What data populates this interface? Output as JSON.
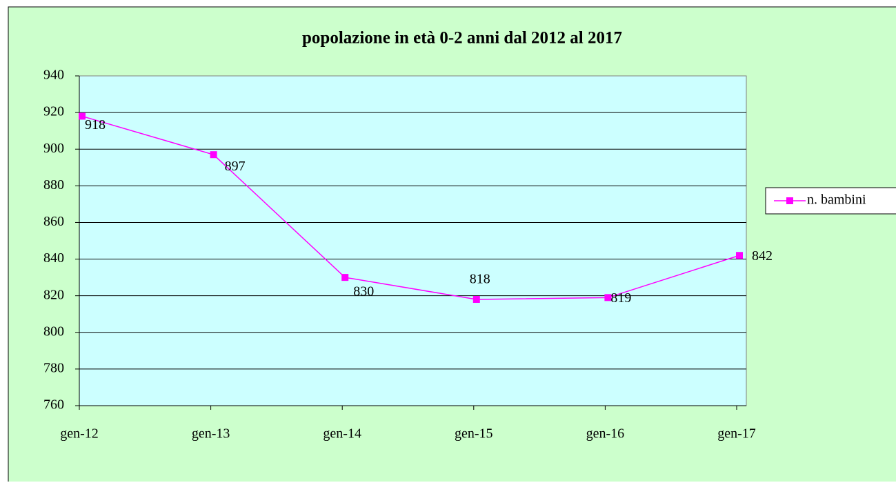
{
  "chart_data": {
    "type": "line",
    "title": "popolazione in età 0-2 anni dal 2012 al 2017",
    "categories": [
      "gen-12",
      "gen-13",
      "gen-14",
      "gen-15",
      "gen-16",
      "gen-17"
    ],
    "series": [
      {
        "name": "n. bambini",
        "color": "#ff00ff",
        "values": [
          918,
          897,
          830,
          818,
          819,
          842
        ]
      }
    ],
    "ylim": [
      760,
      940
    ],
    "yticks": [
      760,
      780,
      800,
      820,
      840,
      860,
      880,
      900,
      920,
      940
    ],
    "grid": true,
    "legend": "right"
  }
}
